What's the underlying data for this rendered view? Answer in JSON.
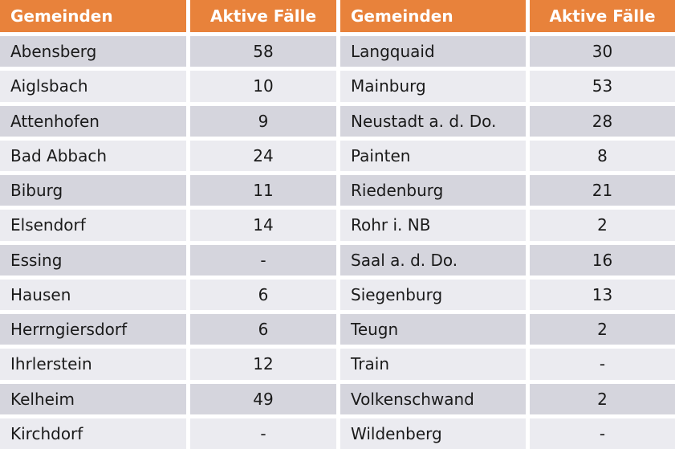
{
  "table": {
    "colors": {
      "header_bg": "#E8823B",
      "header_text": "#FFFFFF",
      "row_dark": "#D5D5DD",
      "row_light": "#EBEBF0",
      "cell_text": "#1A1A1A"
    },
    "headers": [
      "Gemeinden",
      "Aktive Fälle",
      "Gemeinden",
      "Aktive Fälle"
    ],
    "empty_marker": "-",
    "rows": [
      [
        "Abensberg",
        "58",
        "Langquaid",
        "30"
      ],
      [
        "Aiglsbach",
        "10",
        "Mainburg",
        "53"
      ],
      [
        "Attenhofen",
        "9",
        "Neustadt a. d. Do.",
        "28"
      ],
      [
        "Bad Abbach",
        "24",
        "Painten",
        "8"
      ],
      [
        "Biburg",
        "11",
        "Riedenburg",
        "21"
      ],
      [
        "Elsendorf",
        "14",
        "Rohr i. NB",
        "2"
      ],
      [
        "Essing",
        "-",
        "Saal a. d. Do.",
        "16"
      ],
      [
        "Hausen",
        "6",
        "Siegenburg",
        "13"
      ],
      [
        "Herrngiersdorf",
        "6",
        "Teugn",
        "2"
      ],
      [
        "Ihrlerstein",
        "12",
        "Train",
        "-"
      ],
      [
        "Kelheim",
        "49",
        "Volkenschwand",
        "2"
      ],
      [
        "Kirchdorf",
        "-",
        "Wildenberg",
        "-"
      ]
    ]
  }
}
